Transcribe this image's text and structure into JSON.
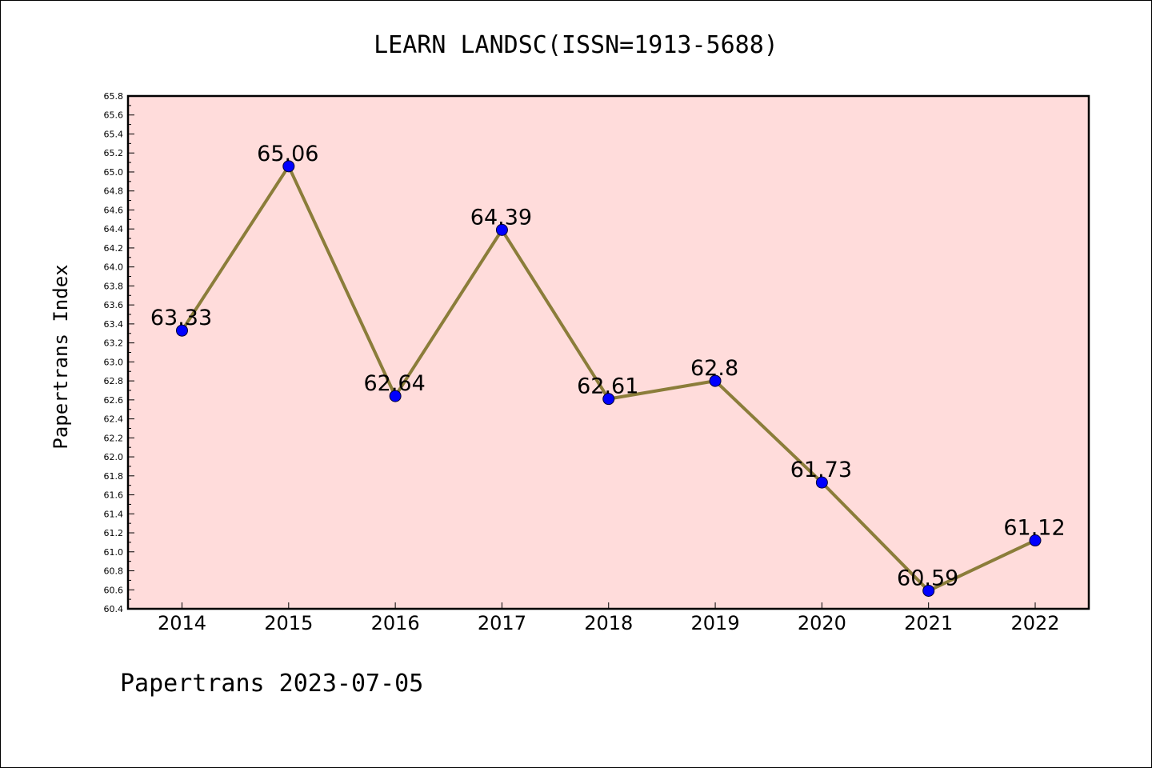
{
  "chart_data": {
    "type": "line",
    "title": "LEARN LANDSC(ISSN=1913-5688)",
    "ylabel": "Papertrans Index",
    "xlabel": "",
    "categories": [
      "2014",
      "2015",
      "2016",
      "2017",
      "2018",
      "2019",
      "2020",
      "2021",
      "2022"
    ],
    "values": [
      63.33,
      65.06,
      62.64,
      64.39,
      62.61,
      62.8,
      61.73,
      60.59,
      61.12
    ],
    "data_labels": [
      "63.33",
      "65.06",
      "62.64",
      "64.39",
      "62.61",
      "62.8",
      "61.73",
      "60.59",
      "61.12"
    ],
    "ylim": [
      60.4,
      65.8
    ],
    "yticks": [
      "60.4",
      "60.6",
      "60.8",
      "61.0",
      "61.2",
      "61.4",
      "61.6",
      "61.8",
      "62.0",
      "62.2",
      "62.4",
      "62.6",
      "62.8",
      "63.0",
      "63.2",
      "63.4",
      "63.6",
      "63.8",
      "64.0",
      "64.2",
      "64.4",
      "64.6",
      "64.8",
      "65.0",
      "65.2",
      "65.4",
      "65.6",
      "65.8"
    ],
    "grid": false,
    "legend": "none",
    "colors": {
      "plot_background": "#ffdcdb",
      "line": "#8b7d3a",
      "marker": "#0000ff"
    }
  },
  "footer": "Papertrans 2023-07-05"
}
